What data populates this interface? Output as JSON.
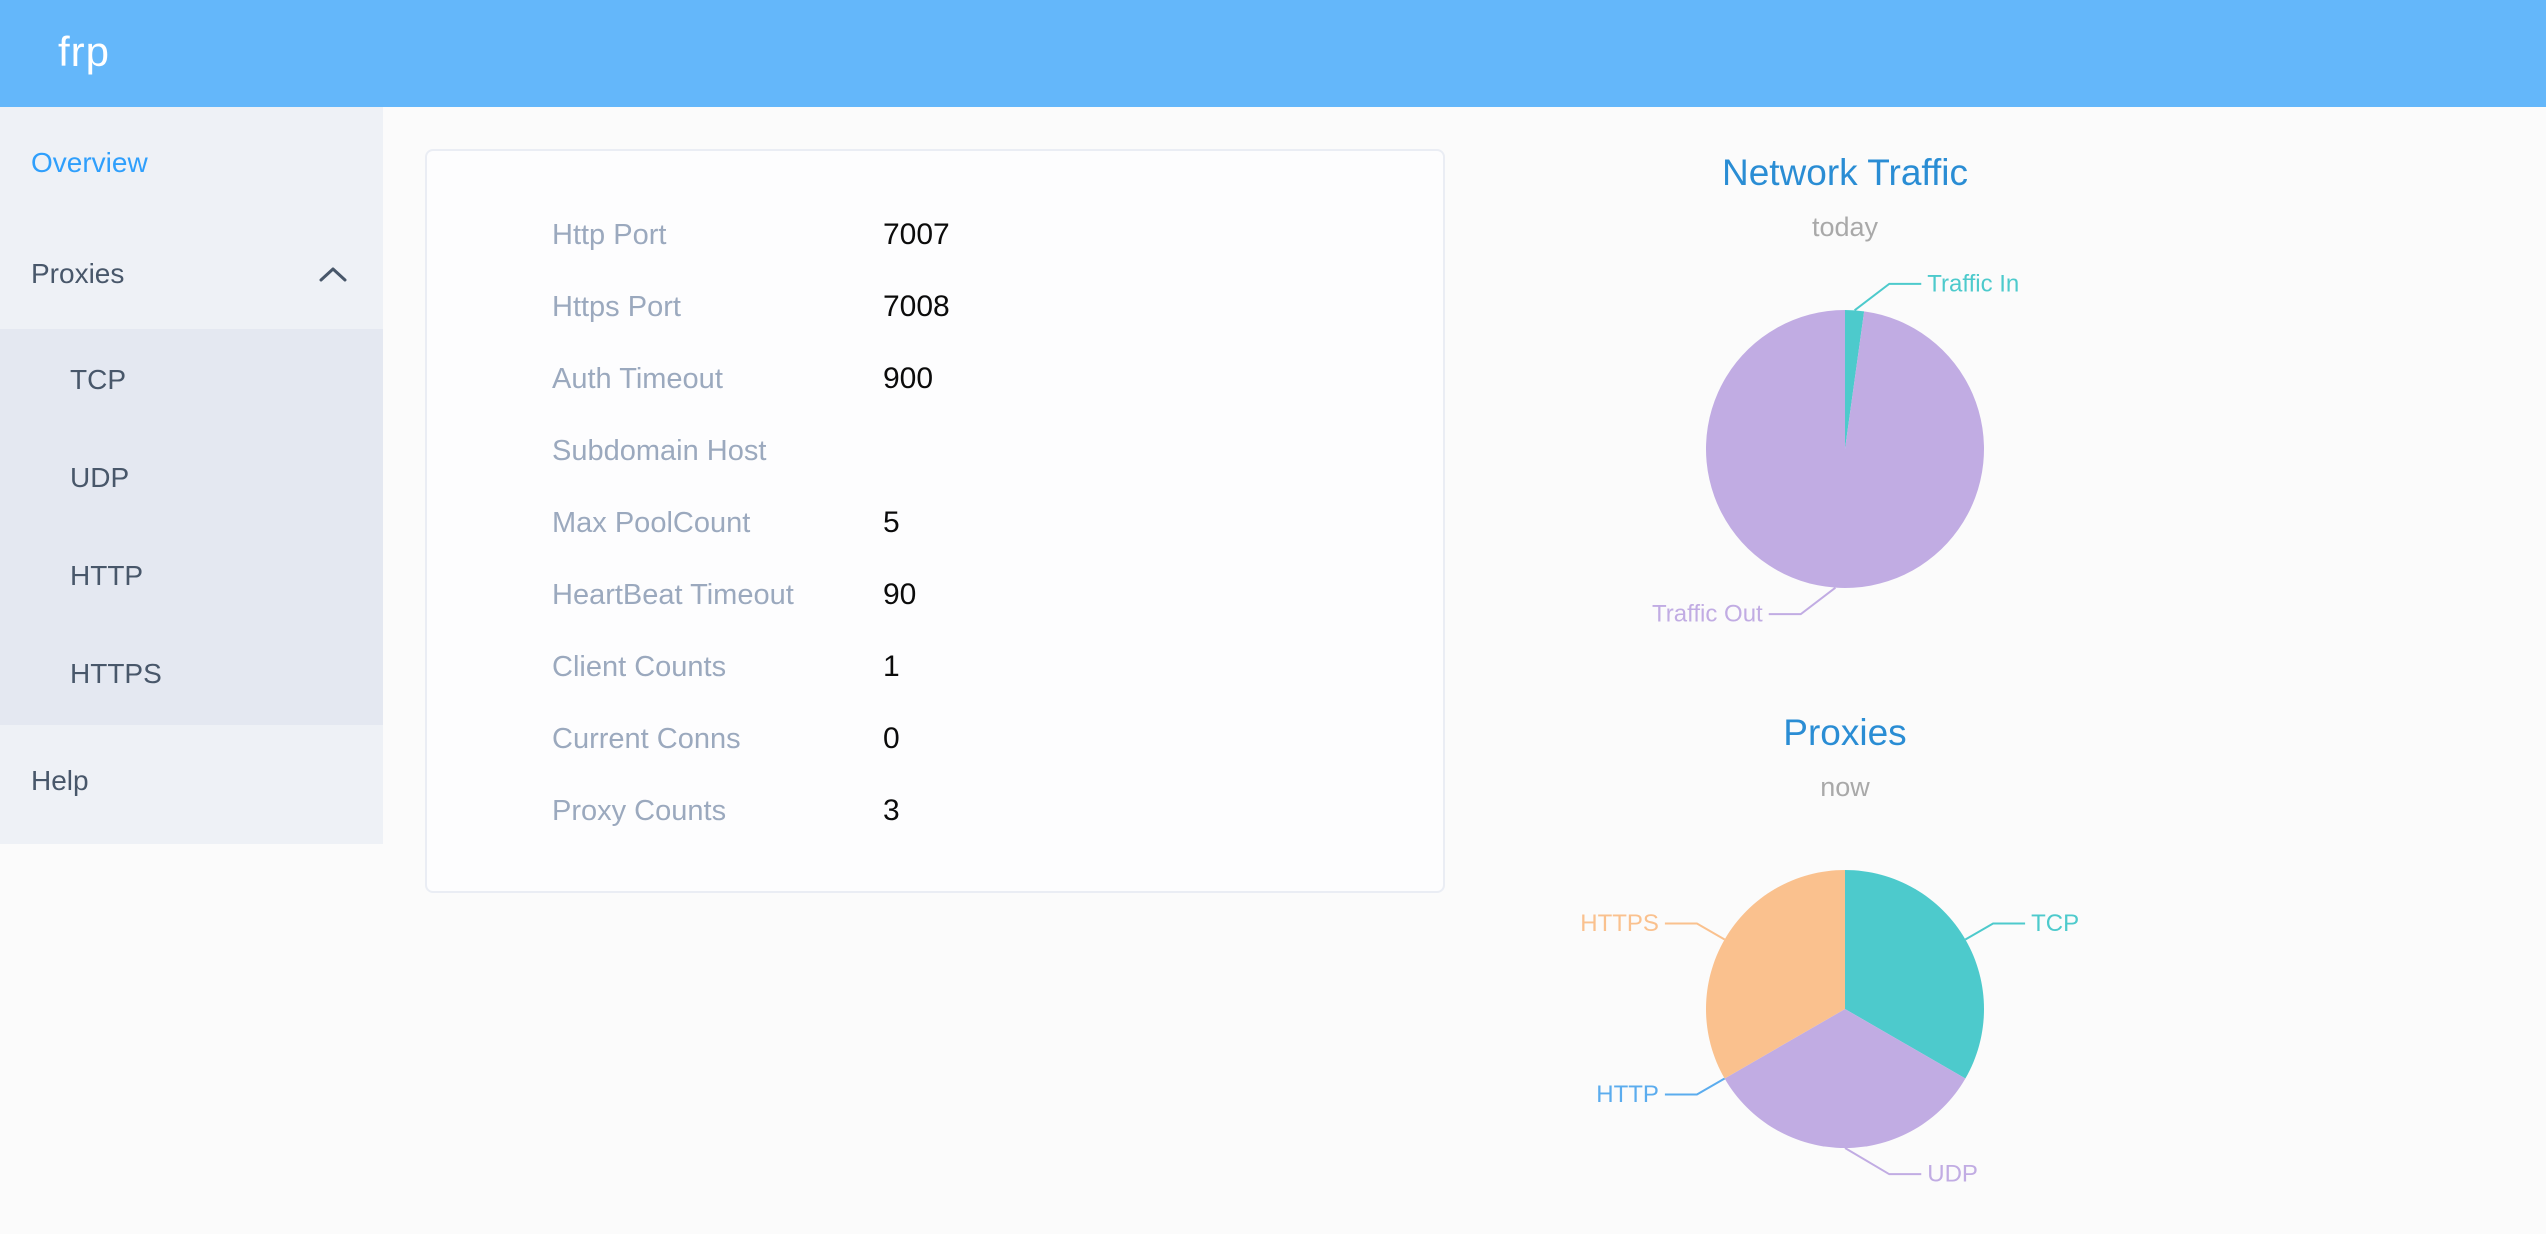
{
  "header": {
    "logo": "frp"
  },
  "icons": {
    "proxies_expand": "chevron-up"
  },
  "sidebar": {
    "items": [
      {
        "label": "Overview",
        "active": true
      },
      {
        "label": "Proxies",
        "active": false,
        "expanded": true,
        "children": [
          {
            "label": "TCP"
          },
          {
            "label": "UDP"
          },
          {
            "label": "HTTP"
          },
          {
            "label": "HTTPS"
          }
        ]
      },
      {
        "label": "Help",
        "active": false
      }
    ]
  },
  "overview_panel": {
    "rows": [
      {
        "label": "Http Port",
        "value": "7007"
      },
      {
        "label": "Https Port",
        "value": "7008"
      },
      {
        "label": "Auth Timeout",
        "value": "900"
      },
      {
        "label": "Subdomain Host",
        "value": ""
      },
      {
        "label": "Max PoolCount",
        "value": "5"
      },
      {
        "label": "HeartBeat Timeout",
        "value": "90"
      },
      {
        "label": "Client Counts",
        "value": "1"
      },
      {
        "label": "Current Conns",
        "value": "0"
      },
      {
        "label": "Proxy Counts",
        "value": "3"
      }
    ]
  },
  "chart_data": [
    {
      "type": "pie",
      "title": "Network Traffic",
      "subtitle": "today",
      "start_angle_deg": 0,
      "clockwise": true,
      "legend": "none",
      "labels": "outside-with-leader-lines",
      "slices": [
        {
          "label": "Traffic In",
          "percent": 2.2,
          "color": "#4DCACC"
        },
        {
          "label": "Traffic Out",
          "percent": 97.8,
          "color": "#C1ACE3"
        }
      ]
    },
    {
      "type": "pie",
      "title": "Proxies",
      "subtitle": "now",
      "start_angle_deg": 0,
      "clockwise": true,
      "legend": "none",
      "labels": "outside-with-leader-lines",
      "slices": [
        {
          "label": "TCP",
          "value": 1,
          "color": "#4DCACC"
        },
        {
          "label": "UDP",
          "value": 1,
          "color": "#C1ACE3"
        },
        {
          "label": "HTTP",
          "value": 0,
          "color": "#5BACEE"
        },
        {
          "label": "HTTPS",
          "value": 1,
          "color": "#FAC18E"
        }
      ]
    }
  ],
  "colors": {
    "header_bg": "#64B7FA",
    "sidebar_bg": "#EEF1F6",
    "submenu_bg": "#E4E8F1",
    "sidebar_text": "#48576A",
    "active_item_text": "#2F9FFC",
    "panel_bg": "#FDFDFE",
    "panel_border": "#EAEDF4",
    "panel_label": "#9BA9BE",
    "panel_value": "#0B0B0B",
    "chart_title": "#2A8DD4",
    "chart_subtitle": "#A9A9A9",
    "teal": "#4DCACC",
    "purple": "#C1ACE3",
    "blue": "#5BACEE",
    "orange": "#FAC18E"
  }
}
